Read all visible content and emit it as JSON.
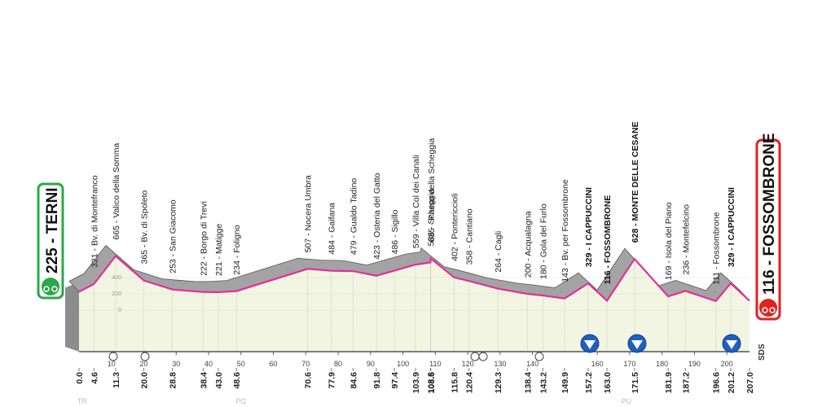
{
  "chart_data": {
    "type": "profile",
    "start": "225 - TERNI",
    "finish": "116 - FOSSOMBRONE",
    "x": [
      0,
      4.6,
      11.3,
      20,
      28.8,
      38.4,
      43,
      48.6,
      70.6,
      77.9,
      84.6,
      91.8,
      97.4,
      103.9,
      108.5,
      108.6,
      115.8,
      120.4,
      129.3,
      138.4,
      143.2,
      149.9,
      157.2,
      163,
      171.5,
      181.9,
      187.2,
      196.6,
      201.2,
      207
    ],
    "values": [
      225,
      321,
      665,
      365,
      253,
      222,
      221,
      234,
      507,
      484,
      479,
      423,
      486,
      559,
      586,
      635,
      402,
      358,
      264,
      200,
      180,
      143,
      329,
      116,
      628,
      169,
      236,
      111,
      329,
      116
    ],
    "line_color": "#e0309a",
    "shadow_color": "#a3a3a3",
    "ground_color": "#f3f5e3",
    "xlim": [
      0,
      207
    ],
    "ylim": [
      0,
      3550
    ],
    "yticks": [
      0,
      200,
      400
    ],
    "xticks": [
      10,
      20,
      30,
      40,
      50,
      60,
      70,
      80,
      90,
      100,
      110,
      120,
      130,
      140,
      160,
      170,
      180,
      190,
      200
    ],
    "kmticks": [
      {
        "value": 0,
        "label": "0.0"
      },
      {
        "value": 4.6,
        "label": "4.6"
      },
      {
        "value": 11.3,
        "label": "11.3"
      },
      {
        "value": 20,
        "label": "20.0"
      },
      {
        "value": 28.8,
        "label": "28.8"
      },
      {
        "value": 38.4,
        "label": "38.4"
      },
      {
        "value": 43,
        "label": "43.0"
      },
      {
        "value": 48.6,
        "label": "48.6"
      },
      {
        "value": 70.6,
        "label": "70.6"
      },
      {
        "value": 77.9,
        "label": "77.9"
      },
      {
        "value": 84.6,
        "label": "84.6"
      },
      {
        "value": 91.8,
        "label": "91.8"
      },
      {
        "value": 97.4,
        "label": "97.4"
      },
      {
        "value": 103.9,
        "label": "103.9"
      },
      {
        "value": 108.5,
        "label": "108.5"
      },
      {
        "value": 108.6,
        "label": "108.6"
      },
      {
        "value": 115.8,
        "label": "115.8"
      },
      {
        "value": 120.4,
        "label": "120.4"
      },
      {
        "value": 129.3,
        "label": "129.3"
      },
      {
        "value": 138.4,
        "label": "138.4"
      },
      {
        "value": 143.2,
        "label": "143.2"
      },
      {
        "value": 149.9,
        "label": "149.9"
      },
      {
        "value": 157.2,
        "label": "157.2"
      },
      {
        "value": 163,
        "label": "163.0"
      },
      {
        "value": 171.5,
        "label": "171.5"
      },
      {
        "value": 181.9,
        "label": "181.9"
      },
      {
        "value": 187.2,
        "label": "187.2"
      },
      {
        "value": 196.6,
        "label": "196.6"
      },
      {
        "value": 201.2,
        "label": "201.2"
      },
      {
        "value": 207,
        "label": "207.0"
      }
    ],
    "annotations": [
      {
        "km": 4.6,
        "label": "321 - Bv. di Montefranco"
      },
      {
        "km": 11.3,
        "label": "665 - Valico della Somma"
      },
      {
        "km": 20,
        "label": "365 - Bv. di Spoleto"
      },
      {
        "km": 28.8,
        "label": "253 - San Giacomo"
      },
      {
        "km": 38.4,
        "label": "222 - Borgo di Trevi"
      },
      {
        "km": 43,
        "label": "221 - Matigge"
      },
      {
        "km": 48.6,
        "label": "234 - Foligno"
      },
      {
        "km": 70.6,
        "label": "507 - Nocera Umbra"
      },
      {
        "km": 77.9,
        "label": "484 - Gaifana"
      },
      {
        "km": 84.6,
        "label": "479 - Gualdo Tadino"
      },
      {
        "km": 91.8,
        "label": "423 - Osteria del Gatto"
      },
      {
        "km": 97.4,
        "label": "486 - Sigillo"
      },
      {
        "km": 103.9,
        "label": "559 - Villa Col dei Canali"
      },
      {
        "km": 108.5,
        "label": "586 - Scheggia"
      },
      {
        "km": 108.6,
        "label": "635 - Passo della Scheggia"
      },
      {
        "km": 115.8,
        "label": "402 - Pontericcioli"
      },
      {
        "km": 120.4,
        "label": "358 - Cantiano"
      },
      {
        "km": 129.3,
        "label": "264 - Cagli"
      },
      {
        "km": 138.4,
        "label": "200 - Acqualagna"
      },
      {
        "km": 143.2,
        "label": "180 - Gola del Furlo"
      },
      {
        "km": 149.9,
        "label": "143 - Bv. per Fossombrone"
      },
      {
        "km": 157.2,
        "label": "329 - I CAPPUCCINI"
      },
      {
        "km": 163,
        "label": "116 - FOSSOMBRONE"
      },
      {
        "km": 171.5,
        "label": "628 - MONTE DELLE CESANE"
      },
      {
        "km": 181.9,
        "label": "169 - Isola del Piano"
      },
      {
        "km": 187.2,
        "label": "236 - Montefelcino"
      },
      {
        "km": 196.6,
        "label": "111 - Fossombrone"
      },
      {
        "km": 201.2,
        "label": "329 - I CAPPUCCINI"
      }
    ],
    "regions": [
      {
        "km": 1,
        "label": "TR"
      },
      {
        "km": 50,
        "label": "PG"
      },
      {
        "km": 169,
        "label": "PU"
      }
    ],
    "marker_label": "SDS"
  }
}
